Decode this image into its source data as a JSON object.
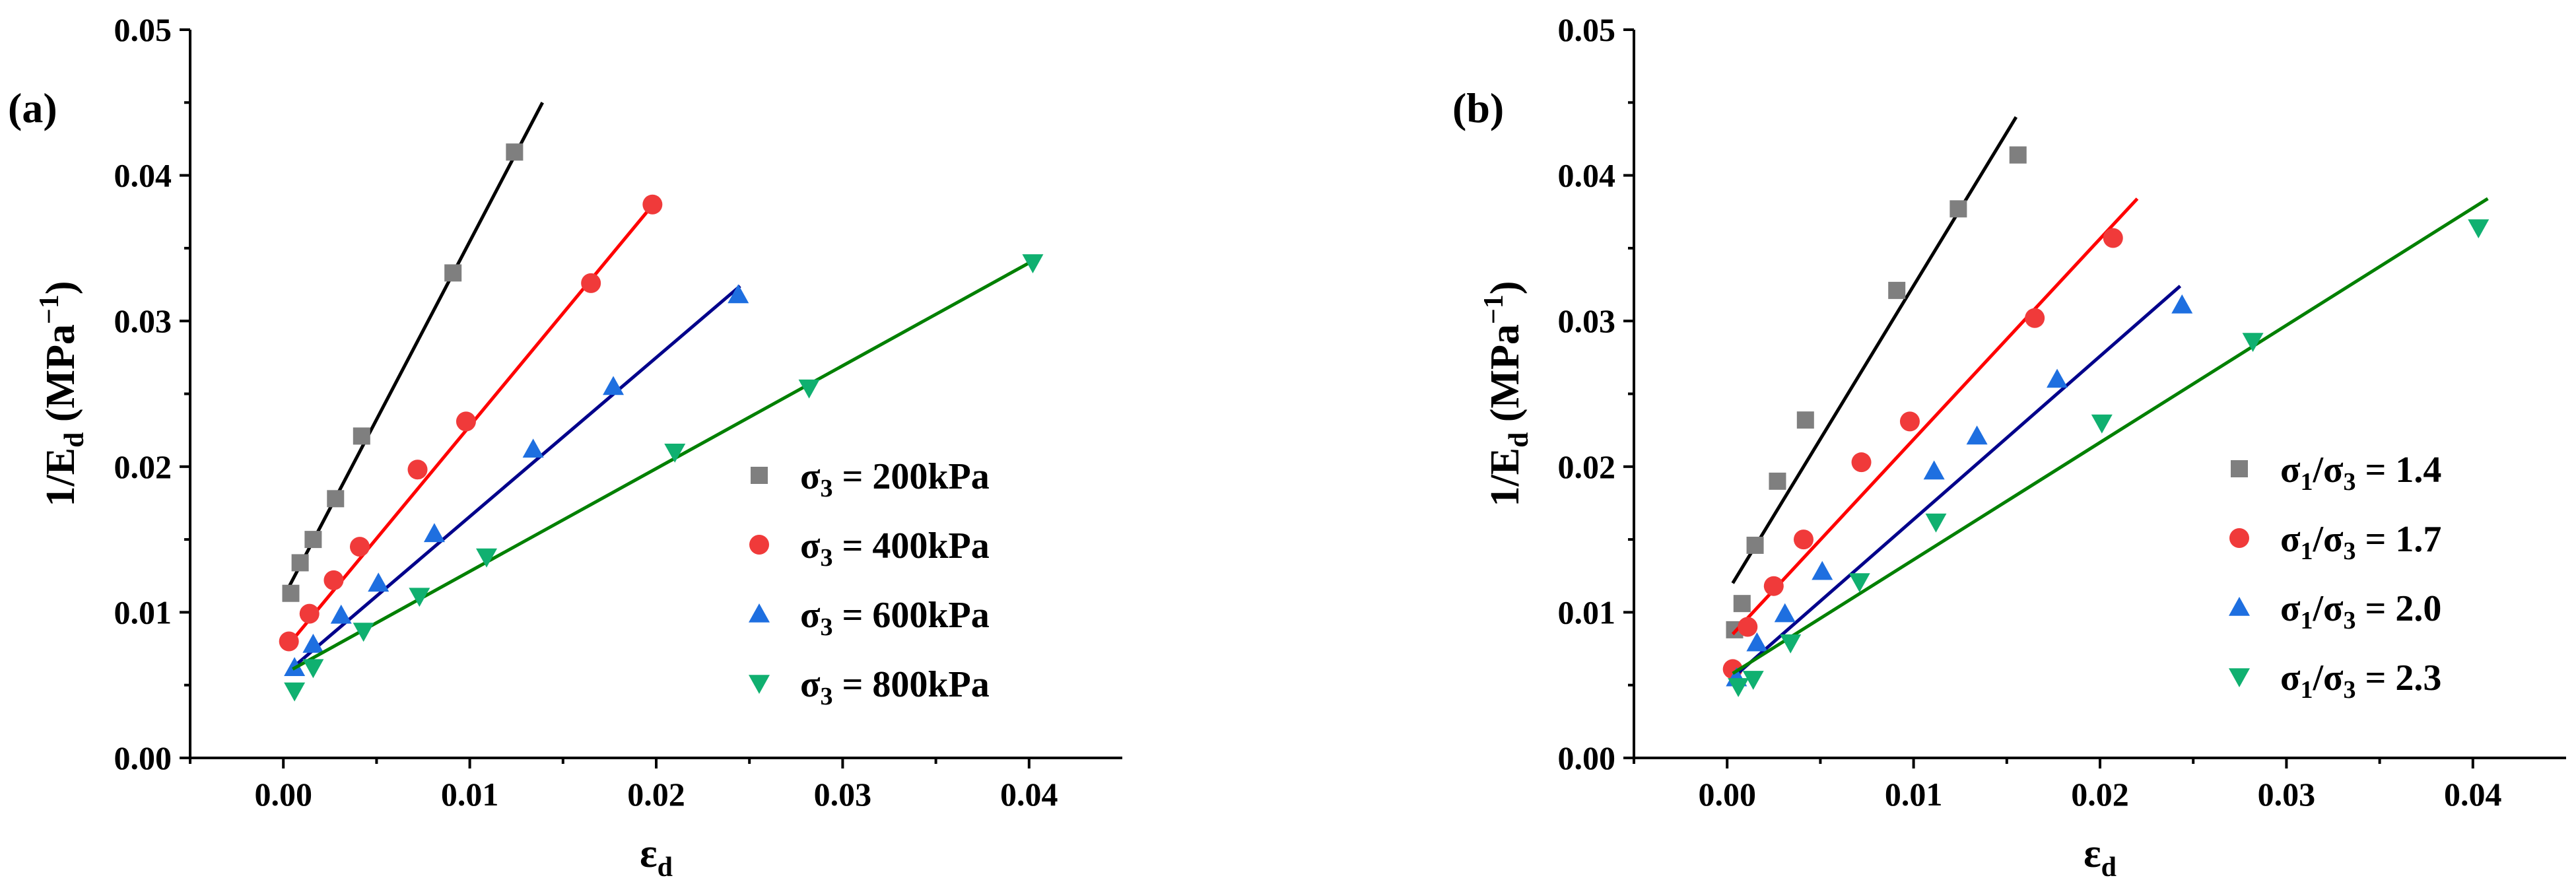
{
  "chart_data": [
    {
      "type": "scatter",
      "panel_label": "(a)",
      "xlabel": "εd",
      "xlabel_main": "ε",
      "xlabel_sub": "d",
      "ylabel": "1/Ed (MPa−1)",
      "ylabel_parts": [
        "1/E",
        "d",
        " (MPa",
        "−1",
        ")"
      ],
      "xlim": [
        -0.005,
        0.045
      ],
      "ylim": [
        0,
        0.05
      ],
      "xticks": [
        0.0,
        0.01,
        0.02,
        0.03,
        0.04
      ],
      "xtick_labels": [
        "0.00",
        "0.01",
        "0.02",
        "0.03",
        "0.04"
      ],
      "yticks": [
        0.0,
        0.01,
        0.02,
        0.03,
        0.04,
        0.05
      ],
      "ytick_labels": [
        "0.00",
        "0.01",
        "0.02",
        "0.03",
        "0.04",
        "0.05"
      ],
      "legend_position": "right",
      "series": [
        {
          "name": "σ3 = 200kPa",
          "legend_parts": [
            "σ",
            "3",
            " = 200kPa"
          ],
          "marker": "square",
          "color": "#7f7f7f",
          "line_color": "#000000",
          "x": [
            0.0004,
            0.0009,
            0.0016,
            0.0028,
            0.0042,
            0.0091,
            0.0124
          ],
          "y": [
            0.0113,
            0.0134,
            0.015,
            0.0178,
            0.0221,
            0.0333,
            0.0416
          ],
          "fit": {
            "x": [
              0.0002,
              0.0139
            ],
            "y": [
              0.0115,
              0.045
            ]
          }
        },
        {
          "name": "σ3 = 400kPa",
          "legend_parts": [
            "σ",
            "3",
            " = 400kPa"
          ],
          "marker": "circle",
          "color": "#f03a3a",
          "line_color": "#ff0000",
          "x": [
            0.0003,
            0.0014,
            0.0027,
            0.0041,
            0.0072,
            0.0098,
            0.0165,
            0.0198
          ],
          "y": [
            0.008,
            0.0099,
            0.0122,
            0.0145,
            0.0198,
            0.0231,
            0.0326,
            0.038
          ],
          "fit": {
            "x": [
              0.0003,
              0.0199
            ],
            "y": [
              0.0078,
              0.0381
            ]
          }
        },
        {
          "name": "σ3 = 600kPa",
          "legend_parts": [
            "σ",
            "3",
            " = 600kPa"
          ],
          "marker": "triangle-up",
          "color": "#1e6fe0",
          "line_color": "#00008b",
          "x": [
            0.0006,
            0.0016,
            0.0031,
            0.0051,
            0.0081,
            0.0134,
            0.0177,
            0.0244
          ],
          "y": [
            0.0062,
            0.0078,
            0.0098,
            0.012,
            0.0154,
            0.0212,
            0.0255,
            0.0318
          ],
          "fit": {
            "x": [
              0.0005,
              0.0245
            ],
            "y": [
              0.0062,
              0.0324
            ]
          }
        },
        {
          "name": "σ3 = 800kPa",
          "legend_parts": [
            "σ",
            "3",
            " = 800kPa"
          ],
          "marker": "triangle-down",
          "color": "#10b070",
          "line_color": "#008000",
          "x": [
            0.0006,
            0.0016,
            0.0043,
            0.0073,
            0.0109,
            0.021,
            0.0282,
            0.0402
          ],
          "y": [
            0.0046,
            0.0062,
            0.0087,
            0.0111,
            0.0138,
            0.021,
            0.0254,
            0.034
          ],
          "fit": {
            "x": [
              0.0005,
              0.0403
            ],
            "y": [
              0.0061,
              0.0342
            ]
          }
        }
      ]
    },
    {
      "type": "scatter",
      "panel_label": "(b)",
      "xlabel": "εd",
      "xlabel_main": "ε",
      "xlabel_sub": "d",
      "ylabel": "1/Ed (MPa−1)",
      "ylabel_parts": [
        "1/E",
        "d",
        " (MPa",
        "−1",
        ")"
      ],
      "xlim": [
        -0.005,
        0.045
      ],
      "ylim": [
        0,
        0.05
      ],
      "xticks": [
        0.0,
        0.01,
        0.02,
        0.03,
        0.04
      ],
      "xtick_labels": [
        "0.00",
        "0.01",
        "0.02",
        "0.03",
        "0.04"
      ],
      "yticks": [
        0.0,
        0.01,
        0.02,
        0.03,
        0.04,
        0.05
      ],
      "ytick_labels": [
        "0.00",
        "0.01",
        "0.02",
        "0.03",
        "0.04",
        "0.05"
      ],
      "legend_position": "right",
      "series": [
        {
          "name": "σ1/σ3 = 1.4",
          "legend_parts": [
            "σ",
            "1",
            "/σ",
            "3",
            " = 1.4"
          ],
          "marker": "square",
          "color": "#7f7f7f",
          "line_color": "#000000",
          "x": [
            0.0004,
            0.0008,
            0.0015,
            0.0027,
            0.0042,
            0.0091,
            0.0124,
            0.0156
          ],
          "y": [
            0.0088,
            0.0106,
            0.0146,
            0.019,
            0.0232,
            0.0321,
            0.0377,
            0.0414
          ],
          "fit": {
            "x": [
              0.0003,
              0.0155
            ],
            "y": [
              0.012,
              0.044
            ]
          }
        },
        {
          "name": "σ1/σ3 = 1.7",
          "legend_parts": [
            "σ",
            "1",
            "/σ",
            "3",
            " = 1.7"
          ],
          "marker": "circle",
          "color": "#f03a3a",
          "line_color": "#ff0000",
          "x": [
            0.0003,
            0.0011,
            0.0025,
            0.0041,
            0.0072,
            0.0098,
            0.0165,
            0.0207
          ],
          "y": [
            0.0061,
            0.009,
            0.0118,
            0.015,
            0.0203,
            0.0231,
            0.0302,
            0.0357
          ],
          "fit": {
            "x": [
              0.0003,
              0.022
            ],
            "y": [
              0.0085,
              0.0384
            ]
          }
        },
        {
          "name": "σ1/σ3 = 2.0",
          "legend_parts": [
            "σ",
            "1",
            "/σ",
            "3",
            " = 2.0"
          ],
          "marker": "triangle-up",
          "color": "#1e6fe0",
          "line_color": "#00008b",
          "x": [
            0.0005,
            0.0016,
            0.0031,
            0.0051,
            0.0111,
            0.0134,
            0.0177,
            0.0244
          ],
          "y": [
            0.0055,
            0.0079,
            0.0099,
            0.0128,
            0.0197,
            0.0221,
            0.026,
            0.0311
          ],
          "fit": {
            "x": [
              0.0003,
              0.0243
            ],
            "y": [
              0.0055,
              0.0324
            ]
          }
        },
        {
          "name": "σ1/σ3 = 2.3",
          "legend_parts": [
            "σ",
            "1",
            "/σ",
            "3",
            " = 2.3"
          ],
          "marker": "triangle-down",
          "color": "#10b070",
          "line_color": "#008000",
          "x": [
            0.0006,
            0.0014,
            0.0034,
            0.0071,
            0.0112,
            0.0201,
            0.0282,
            0.0403
          ],
          "y": [
            0.0049,
            0.0054,
            0.0079,
            0.0121,
            0.0162,
            0.023,
            0.0286,
            0.0364
          ],
          "fit": {
            "x": [
              0.0003,
              0.0408
            ],
            "y": [
              0.0058,
              0.0384
            ]
          }
        }
      ]
    }
  ]
}
